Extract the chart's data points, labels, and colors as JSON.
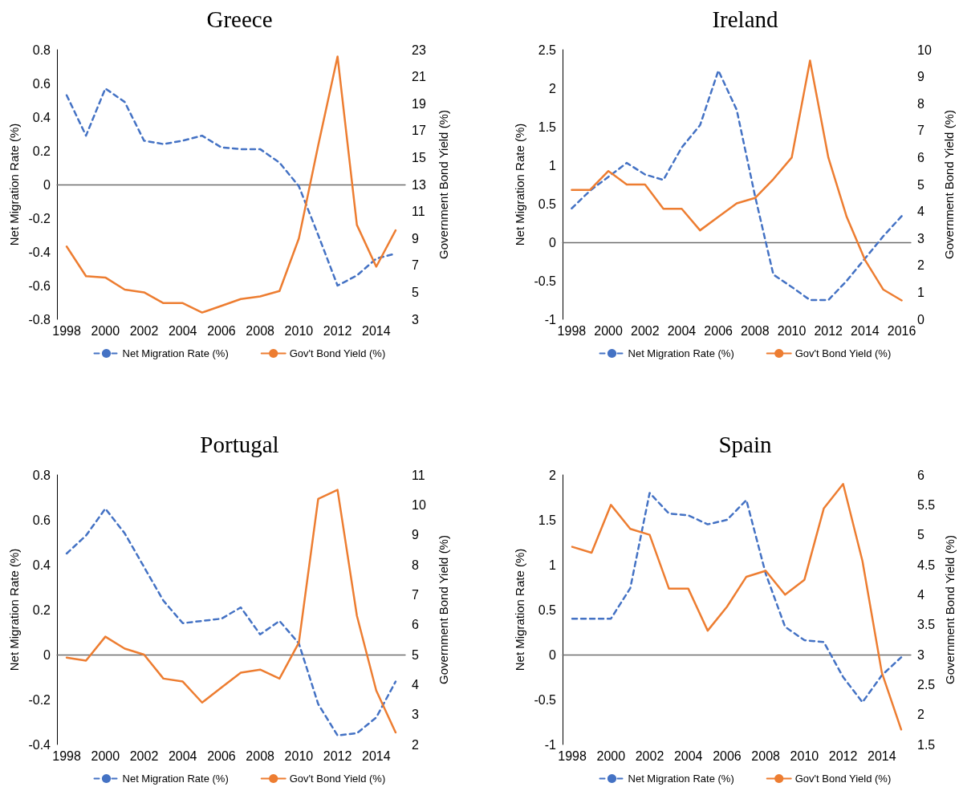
{
  "chart_data": [
    {
      "type": "line",
      "title": "Greece",
      "ylabel": "Net Migration Rate (%)",
      "y2label": "Government Bond Yield (%)",
      "categories": [
        "1998",
        null,
        "2000",
        null,
        "2002",
        null,
        "2004",
        null,
        "2006",
        null,
        "2008",
        null,
        "2010",
        null,
        "2012",
        null,
        "2014",
        null
      ],
      "series": [
        {
          "name": "Net Migration Rate (%)",
          "color": "#4472c4",
          "line_style": "dashed",
          "values": [
            0.53,
            0.29,
            0.57,
            0.49,
            0.26,
            0.24,
            0.26,
            0.29,
            0.22,
            0.21,
            0.21,
            0.13,
            -0.01,
            -0.3,
            -0.6,
            -0.54,
            -0.44,
            -0.41
          ]
        },
        {
          "name": "Gov't Bond Yield (%)",
          "color": "#ed7d31",
          "line_style": "solid",
          "axis": "y2",
          "values": [
            8.4,
            6.2,
            6.1,
            5.2,
            5.0,
            4.2,
            4.2,
            3.5,
            4.0,
            4.5,
            4.7,
            5.1,
            9.0,
            15.9,
            22.5,
            10.0,
            6.9,
            9.6
          ]
        }
      ],
      "ylim": [
        -0.8,
        0.8
      ],
      "yticks": [
        -0.8,
        -0.6,
        -0.4,
        -0.2,
        0,
        0.2,
        0.4,
        0.6,
        0.8
      ],
      "y2lim": [
        3,
        23
      ],
      "y2ticks": [
        3,
        5,
        7,
        9,
        11,
        13,
        15,
        17,
        19,
        21,
        23
      ],
      "legend": "bottom",
      "marker": "none"
    },
    {
      "type": "line",
      "title": "Ireland",
      "ylabel": "Net Migration Rate (%)",
      "y2label": "Government Bond Yield (%)",
      "categories": [
        "1998",
        null,
        "2000",
        null,
        "2002",
        null,
        "2004",
        null,
        "2006",
        null,
        "2008",
        null,
        "2010",
        null,
        "2012",
        null,
        "2014",
        null,
        "2016"
      ],
      "series": [
        {
          "name": "Net Migration Rate (%)",
          "color": "#4472c4",
          "line_style": "dashed",
          "values": [
            0.44,
            0.67,
            0.85,
            1.03,
            0.88,
            0.81,
            1.23,
            1.52,
            2.23,
            1.72,
            0.6,
            -0.42,
            -0.58,
            -0.75,
            -0.75,
            -0.5,
            -0.21,
            0.08,
            0.34
          ]
        },
        {
          "name": "Gov't Bond Yield (%)",
          "color": "#ed7d31",
          "line_style": "solid",
          "axis": "y2",
          "values": [
            4.8,
            4.8,
            5.5,
            5.0,
            5.0,
            4.1,
            4.1,
            3.3,
            3.8,
            4.3,
            4.5,
            5.2,
            6.0,
            9.6,
            6.0,
            3.8,
            2.2,
            1.1,
            0.7
          ]
        }
      ],
      "ylim": [
        -1,
        2.5
      ],
      "yticks": [
        -1,
        -0.5,
        0,
        0.5,
        1,
        1.5,
        2,
        2.5
      ],
      "y2lim": [
        0,
        10
      ],
      "y2ticks": [
        0,
        1,
        2,
        3,
        4,
        5,
        6,
        7,
        8,
        9,
        10
      ],
      "legend": "bottom",
      "marker": "none"
    },
    {
      "type": "line",
      "title": "Portugal",
      "ylabel": "Net Migration Rate (%)",
      "y2label": "Government Bond Yield (%)",
      "categories": [
        "1998",
        null,
        "2000",
        null,
        "2002",
        null,
        "2004",
        null,
        "2006",
        null,
        "2008",
        null,
        "2010",
        null,
        "2012",
        null,
        "2014",
        null
      ],
      "series": [
        {
          "name": "Net Migration Rate (%)",
          "color": "#4472c4",
          "line_style": "dashed",
          "values": [
            0.45,
            0.53,
            0.65,
            0.54,
            0.39,
            0.24,
            0.14,
            0.15,
            0.16,
            0.21,
            0.09,
            0.15,
            0.05,
            -0.22,
            -0.36,
            -0.35,
            -0.28,
            -0.12
          ]
        },
        {
          "name": "Gov't Bond Yield (%)",
          "color": "#ed7d31",
          "line_style": "solid",
          "axis": "y2",
          "values": [
            4.9,
            4.8,
            5.6,
            5.2,
            5.0,
            4.2,
            4.1,
            3.4,
            3.9,
            4.4,
            4.5,
            4.2,
            5.4,
            10.2,
            10.5,
            6.3,
            3.8,
            2.4
          ]
        }
      ],
      "ylim": [
        -0.4,
        0.8
      ],
      "yticks": [
        -0.4,
        -0.2,
        0,
        0.2,
        0.4,
        0.6,
        0.8
      ],
      "y2lim": [
        2,
        11
      ],
      "y2ticks": [
        2,
        3,
        4,
        5,
        6,
        7,
        8,
        9,
        10,
        11
      ],
      "legend": "bottom",
      "marker": "none"
    },
    {
      "type": "line",
      "title": "Spain",
      "ylabel": "Net Migration Rate (%)",
      "y2label": "Government Bond Yield (%)",
      "categories": [
        "1998",
        null,
        "2000",
        null,
        "2002",
        null,
        "2004",
        null,
        "2006",
        null,
        "2008",
        null,
        "2010",
        null,
        "2012",
        null,
        "2014",
        null
      ],
      "series": [
        {
          "name": "Net Migration Rate (%)",
          "color": "#4472c4",
          "line_style": "dashed",
          "values": [
            0.4,
            0.4,
            0.4,
            0.74,
            1.8,
            1.57,
            1.55,
            1.45,
            1.5,
            1.72,
            0.9,
            0.31,
            0.16,
            0.14,
            -0.25,
            -0.53,
            -0.23,
            -0.03
          ]
        },
        {
          "name": "Gov't Bond Yield (%)",
          "color": "#ed7d31",
          "line_style": "solid",
          "axis": "y2",
          "values": [
            4.8,
            4.7,
            5.5,
            5.1,
            5.0,
            4.1,
            4.1,
            3.4,
            3.8,
            4.3,
            4.4,
            4.0,
            4.25,
            5.44,
            5.85,
            4.56,
            2.7,
            1.75
          ]
        }
      ],
      "ylim": [
        -1,
        2
      ],
      "yticks": [
        -1,
        -0.5,
        0,
        0.5,
        1,
        1.5,
        2
      ],
      "y2lim": [
        1.5,
        6
      ],
      "y2ticks": [
        1.5,
        2,
        2.5,
        3,
        3.5,
        4,
        4.5,
        5,
        5.5,
        6
      ],
      "legend": "bottom",
      "marker": "none"
    }
  ]
}
